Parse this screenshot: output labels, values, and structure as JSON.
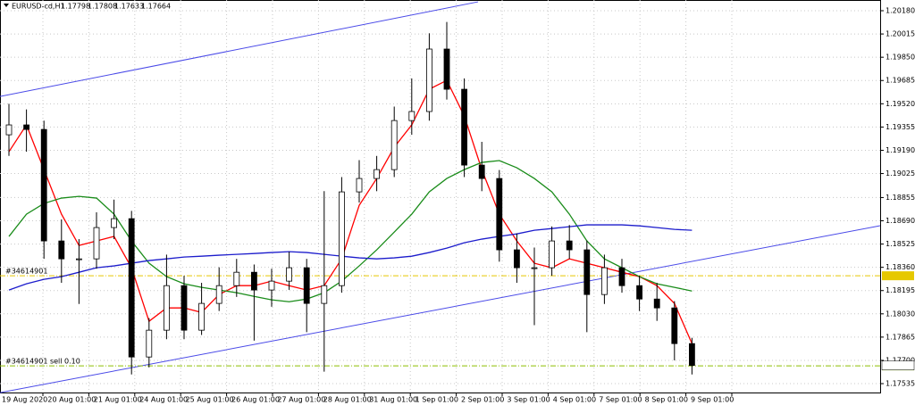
{
  "chart_data": {
    "type": "candlestick",
    "symbol": "EURUSD-cd,H1",
    "ohlc": [
      1.17798,
      1.17808,
      1.17633,
      1.17664
    ],
    "x_labels": [
      "19 Aug 2020",
      "20 Aug 01:00",
      "21 Aug 01:00",
      "24 Aug 01:00",
      "25 Aug 01:00",
      "26 Aug 01:00",
      "27 Aug 01:00",
      "28 Aug 01:00",
      "31 Aug 01:00",
      "1 Sep 01:00",
      "2 Sep 01:00",
      "3 Sep 01:00",
      "4 Sep 01:00",
      "7 Sep 01:00",
      "8 Sep 01:00",
      "9 Sep 01:00"
    ],
    "open": [
      1.193,
      1.1937,
      1.19338,
      1.18547,
      1.1842,
      1.1842,
      1.18642,
      1.18705,
      1.17724,
      1.17914,
      1.1823,
      1.17914,
      1.18104,
      1.1823,
      1.18325,
      1.18199,
      1.18262,
      1.18357,
      1.18104,
      1.1823,
      1.18895,
      1.1899,
      1.19053,
      1.19401,
      1.19465,
      1.19908,
      1.19623,
      1.19085,
      1.1899,
      1.18484,
      1.18357,
      1.18357,
      1.18547,
      1.18484,
      1.18167,
      1.18357,
      1.1823,
      1.18135,
      1.18072,
      1.17819
    ],
    "high": [
      1.1952,
      1.1948,
      1.194,
      1.187,
      1.1856,
      1.1875,
      1.1884,
      1.1876,
      1.18,
      1.1845,
      1.183,
      1.1825,
      1.1836,
      1.1842,
      1.1838,
      1.1835,
      1.1847,
      1.1842,
      1.189,
      1.19,
      1.1912,
      1.1915,
      1.195,
      1.197,
      1.2002,
      1.201,
      1.197,
      1.1925,
      1.1905,
      1.186,
      1.185,
      1.1865,
      1.1866,
      1.1855,
      1.1845,
      1.1842,
      1.183,
      1.1825,
      1.1812,
      1.1786
    ],
    "low": [
      1.1915,
      1.1918,
      1.1842,
      1.1825,
      1.181,
      1.1835,
      1.1856,
      1.176,
      1.1765,
      1.1785,
      1.1785,
      1.1788,
      1.1805,
      1.1815,
      1.1784,
      1.1808,
      1.182,
      1.179,
      1.1762,
      1.1818,
      1.1882,
      1.189,
      1.19,
      1.193,
      1.194,
      1.1955,
      1.19,
      1.189,
      1.184,
      1.1825,
      1.1795,
      1.183,
      1.1842,
      1.179,
      1.181,
      1.1818,
      1.1805,
      1.1798,
      1.177,
      1.176
    ],
    "close": [
      1.1937,
      1.19338,
      1.18547,
      1.1842,
      1.1842,
      1.18642,
      1.18705,
      1.17724,
      1.17914,
      1.1823,
      1.17914,
      1.18104,
      1.1823,
      1.18325,
      1.18199,
      1.18262,
      1.18357,
      1.18104,
      1.1823,
      1.18895,
      1.1899,
      1.19053,
      1.19401,
      1.19465,
      1.19908,
      1.19623,
      1.19085,
      1.1899,
      1.18484,
      1.18357,
      1.18357,
      1.18547,
      1.18484,
      1.18167,
      1.18357,
      1.1823,
      1.18135,
      1.18072,
      1.17819,
      1.17664
    ],
    "series": [
      {
        "color": "#ff0000",
        "values": [
          1.1918,
          1.1937,
          1.19053,
          1.18737,
          1.18515,
          1.18547,
          1.18579,
          1.18357,
          1.17977,
          1.18072,
          1.18072,
          1.1804,
          1.18167,
          1.1823,
          1.1823,
          1.18262,
          1.1823,
          1.18199,
          1.1823,
          1.1842,
          1.188,
          1.1899,
          1.19212,
          1.1937,
          1.19623,
          1.19686,
          1.19433,
          1.19053,
          1.18737,
          1.18547,
          1.18389,
          1.18357,
          1.1842,
          1.18389,
          1.18357,
          1.18325,
          1.18294,
          1.1823,
          1.18104,
          1.17819
        ]
      },
      {
        "color": "#1a8c1a",
        "values": [
          1.18579,
          1.18737,
          1.18813,
          1.18851,
          1.18863,
          1.18851,
          1.18737,
          1.18547,
          1.18389,
          1.18294,
          1.18243,
          1.18218,
          1.18199,
          1.1818,
          1.18154,
          1.18129,
          1.18116,
          1.18135,
          1.1818,
          1.18262,
          1.1837,
          1.18484,
          1.1861,
          1.18737,
          1.18895,
          1.1899,
          1.19053,
          1.19104,
          1.19117,
          1.19066,
          1.1899,
          1.18895,
          1.18737,
          1.18547,
          1.1842,
          1.18357,
          1.18294,
          1.18243,
          1.18218,
          1.18192
        ]
      },
      {
        "color": "#1c1ccc",
        "values": [
          1.18199,
          1.18243,
          1.18275,
          1.18294,
          1.18325,
          1.18357,
          1.1837,
          1.18389,
          1.18408,
          1.1842,
          1.18433,
          1.18439,
          1.18446,
          1.18452,
          1.18458,
          1.18465,
          1.18471,
          1.18465,
          1.18452,
          1.18439,
          1.18427,
          1.1842,
          1.18427,
          1.18439,
          1.18465,
          1.18496,
          1.18534,
          1.1856,
          1.18579,
          1.18597,
          1.18623,
          1.18635,
          1.18648,
          1.18661,
          1.18661,
          1.18661,
          1.18654,
          1.18642,
          1.18629,
          1.18623
        ]
      }
    ],
    "trendlines": [
      {
        "color": "#4a4ae8",
        "values": [
          1.19572,
          1.20243
        ]
      },
      {
        "color": "#4a4ae8",
        "values": [
          1.17471,
          1.18655
        ]
      }
    ],
    "levels": [
      {
        "label": "#34614901",
        "value": 1.183,
        "color": "#e6c800"
      },
      {
        "label": "#34614901 sell 0.10",
        "value": 1.17661,
        "color": "#8cbf00"
      }
    ],
    "ylim": [
      1.17472,
      1.20256
    ],
    "yticks": [
      {
        "value": 1.2018,
        "label": "1.20180"
      },
      1.20015,
      1.19685,
      {
        "value": 1.1985,
        "label": "1.19850"
      },
      {
        "value": 1.1952,
        "label": "1.19520"
      },
      1.19355,
      {
        "value": 1.1919,
        "label": "1.19190"
      },
      1.19025,
      1.18855,
      {
        "value": 1.1869,
        "label": "1.18690"
      },
      1.18525,
      {
        "value": 1.1836,
        "label": "1.18360"
      },
      1.18195,
      {
        "value": 1.1803,
        "label": "1.18030"
      },
      1.17865,
      {
        "value": 1.177,
        "label": "1.17700"
      },
      1.17535
    ],
    "grid": true
  }
}
